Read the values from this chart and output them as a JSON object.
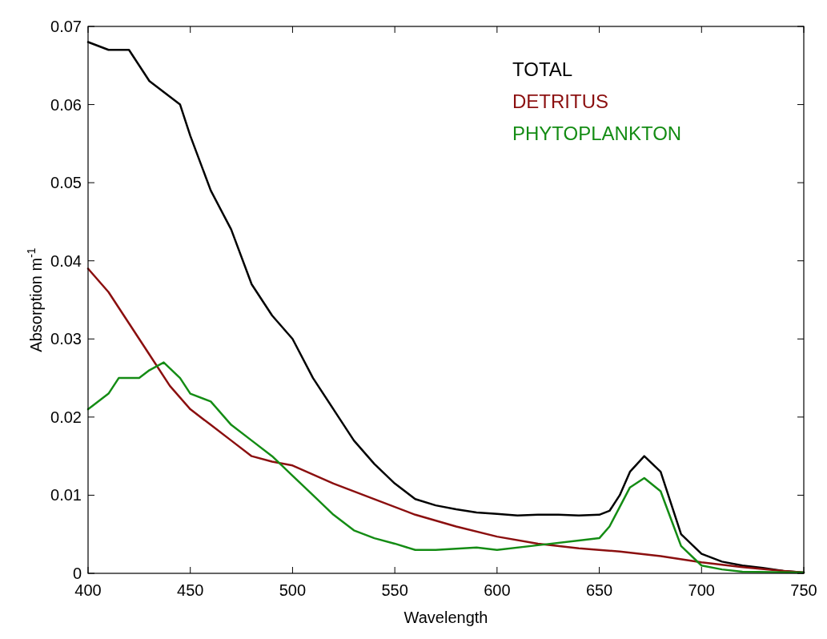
{
  "chart_data": {
    "type": "line",
    "xlabel": "Wavelength",
    "ylabel": "Absorption m$^{-1}$",
    "xlim": [
      400,
      750
    ],
    "ylim": [
      0,
      0.07
    ],
    "xticks": [
      400,
      450,
      500,
      550,
      600,
      650,
      700,
      750
    ],
    "yticks": [
      0,
      0.01,
      0.02,
      0.03,
      0.04,
      0.05,
      0.06,
      0.07
    ],
    "legend": "top right",
    "grid": false,
    "marker": "none",
    "line_style": "solid",
    "series": [
      {
        "name": "TOTAL",
        "color": "#000000",
        "x": [
          400,
          410,
          420,
          430,
          440,
          445,
          450,
          460,
          470,
          480,
          490,
          500,
          510,
          520,
          530,
          540,
          550,
          560,
          570,
          580,
          590,
          600,
          610,
          620,
          630,
          640,
          650,
          655,
          660,
          665,
          672,
          680,
          685,
          690,
          700,
          710,
          720,
          730,
          740,
          750
        ],
        "values": [
          0.068,
          0.067,
          0.067,
          0.063,
          0.061,
          0.06,
          0.056,
          0.049,
          0.044,
          0.037,
          0.033,
          0.03,
          0.025,
          0.021,
          0.017,
          0.014,
          0.0115,
          0.0095,
          0.0087,
          0.0082,
          0.0078,
          0.0076,
          0.0074,
          0.0075,
          0.0075,
          0.0074,
          0.0075,
          0.008,
          0.01,
          0.013,
          0.015,
          0.013,
          0.009,
          0.005,
          0.0025,
          0.0015,
          0.001,
          0.0007,
          0.0003,
          0.0001
        ]
      },
      {
        "name": "DETRITUS",
        "color": "#8b0f0f",
        "x": [
          400,
          410,
          420,
          430,
          440,
          450,
          460,
          470,
          480,
          490,
          500,
          520,
          540,
          560,
          580,
          600,
          620,
          640,
          660,
          680,
          700,
          720,
          740,
          750
        ],
        "values": [
          0.039,
          0.036,
          0.032,
          0.028,
          0.024,
          0.021,
          0.019,
          0.017,
          0.015,
          0.0143,
          0.0138,
          0.0115,
          0.0095,
          0.0075,
          0.006,
          0.0047,
          0.0038,
          0.0032,
          0.0028,
          0.0022,
          0.0014,
          0.0008,
          0.0003,
          0.0001
        ]
      },
      {
        "name": "PHYTOPLANKTON",
        "color": "#148c14",
        "x": [
          400,
          410,
          415,
          425,
          430,
          437,
          445,
          450,
          460,
          470,
          480,
          490,
          500,
          510,
          520,
          530,
          540,
          550,
          560,
          570,
          590,
          600,
          620,
          640,
          650,
          655,
          660,
          665,
          672,
          680,
          685,
          690,
          700,
          710,
          720,
          750
        ],
        "values": [
          0.021,
          0.023,
          0.025,
          0.025,
          0.026,
          0.027,
          0.025,
          0.023,
          0.022,
          0.019,
          0.017,
          0.015,
          0.0125,
          0.01,
          0.0075,
          0.0055,
          0.0045,
          0.0038,
          0.003,
          0.003,
          0.0033,
          0.003,
          0.0036,
          0.0042,
          0.0045,
          0.006,
          0.0085,
          0.011,
          0.0122,
          0.0105,
          0.007,
          0.0035,
          0.001,
          0.0005,
          0.0002,
          0.0001
        ]
      }
    ]
  }
}
